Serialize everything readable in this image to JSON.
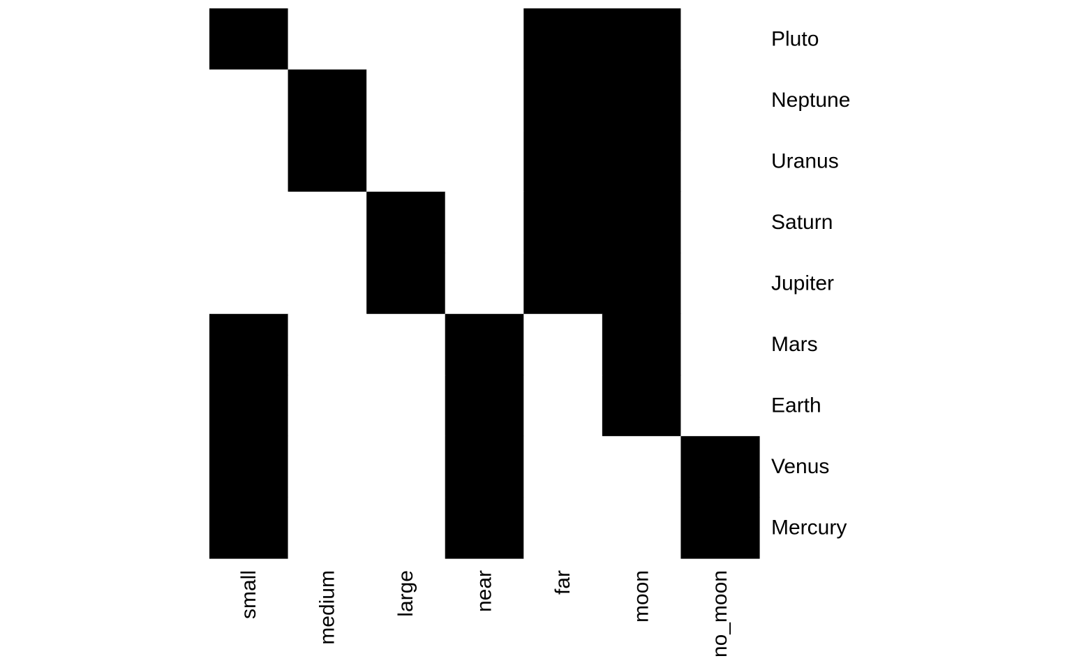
{
  "chart_data": {
    "type": "heatmap",
    "title": "",
    "xlabel": "",
    "ylabel": "",
    "columns": [
      "small",
      "medium",
      "large",
      "near",
      "far",
      "moon",
      "no_moon"
    ],
    "rows": [
      "Pluto",
      "Neptune",
      "Uranus",
      "Saturn",
      "Jupiter",
      "Mars",
      "Earth",
      "Venus",
      "Mercury"
    ],
    "values": [
      [
        1,
        0,
        0,
        0,
        1,
        1,
        0
      ],
      [
        0,
        1,
        0,
        0,
        1,
        1,
        0
      ],
      [
        0,
        1,
        0,
        0,
        1,
        1,
        0
      ],
      [
        0,
        0,
        1,
        0,
        1,
        1,
        0
      ],
      [
        0,
        0,
        1,
        0,
        1,
        1,
        0
      ],
      [
        1,
        0,
        0,
        1,
        0,
        1,
        0
      ],
      [
        1,
        0,
        0,
        1,
        0,
        1,
        0
      ],
      [
        1,
        0,
        0,
        1,
        0,
        0,
        1
      ],
      [
        1,
        0,
        0,
        1,
        0,
        0,
        1
      ]
    ],
    "colors": {
      "present": "#000000",
      "absent": "#ffffff"
    },
    "grid": false,
    "legend": "none"
  }
}
